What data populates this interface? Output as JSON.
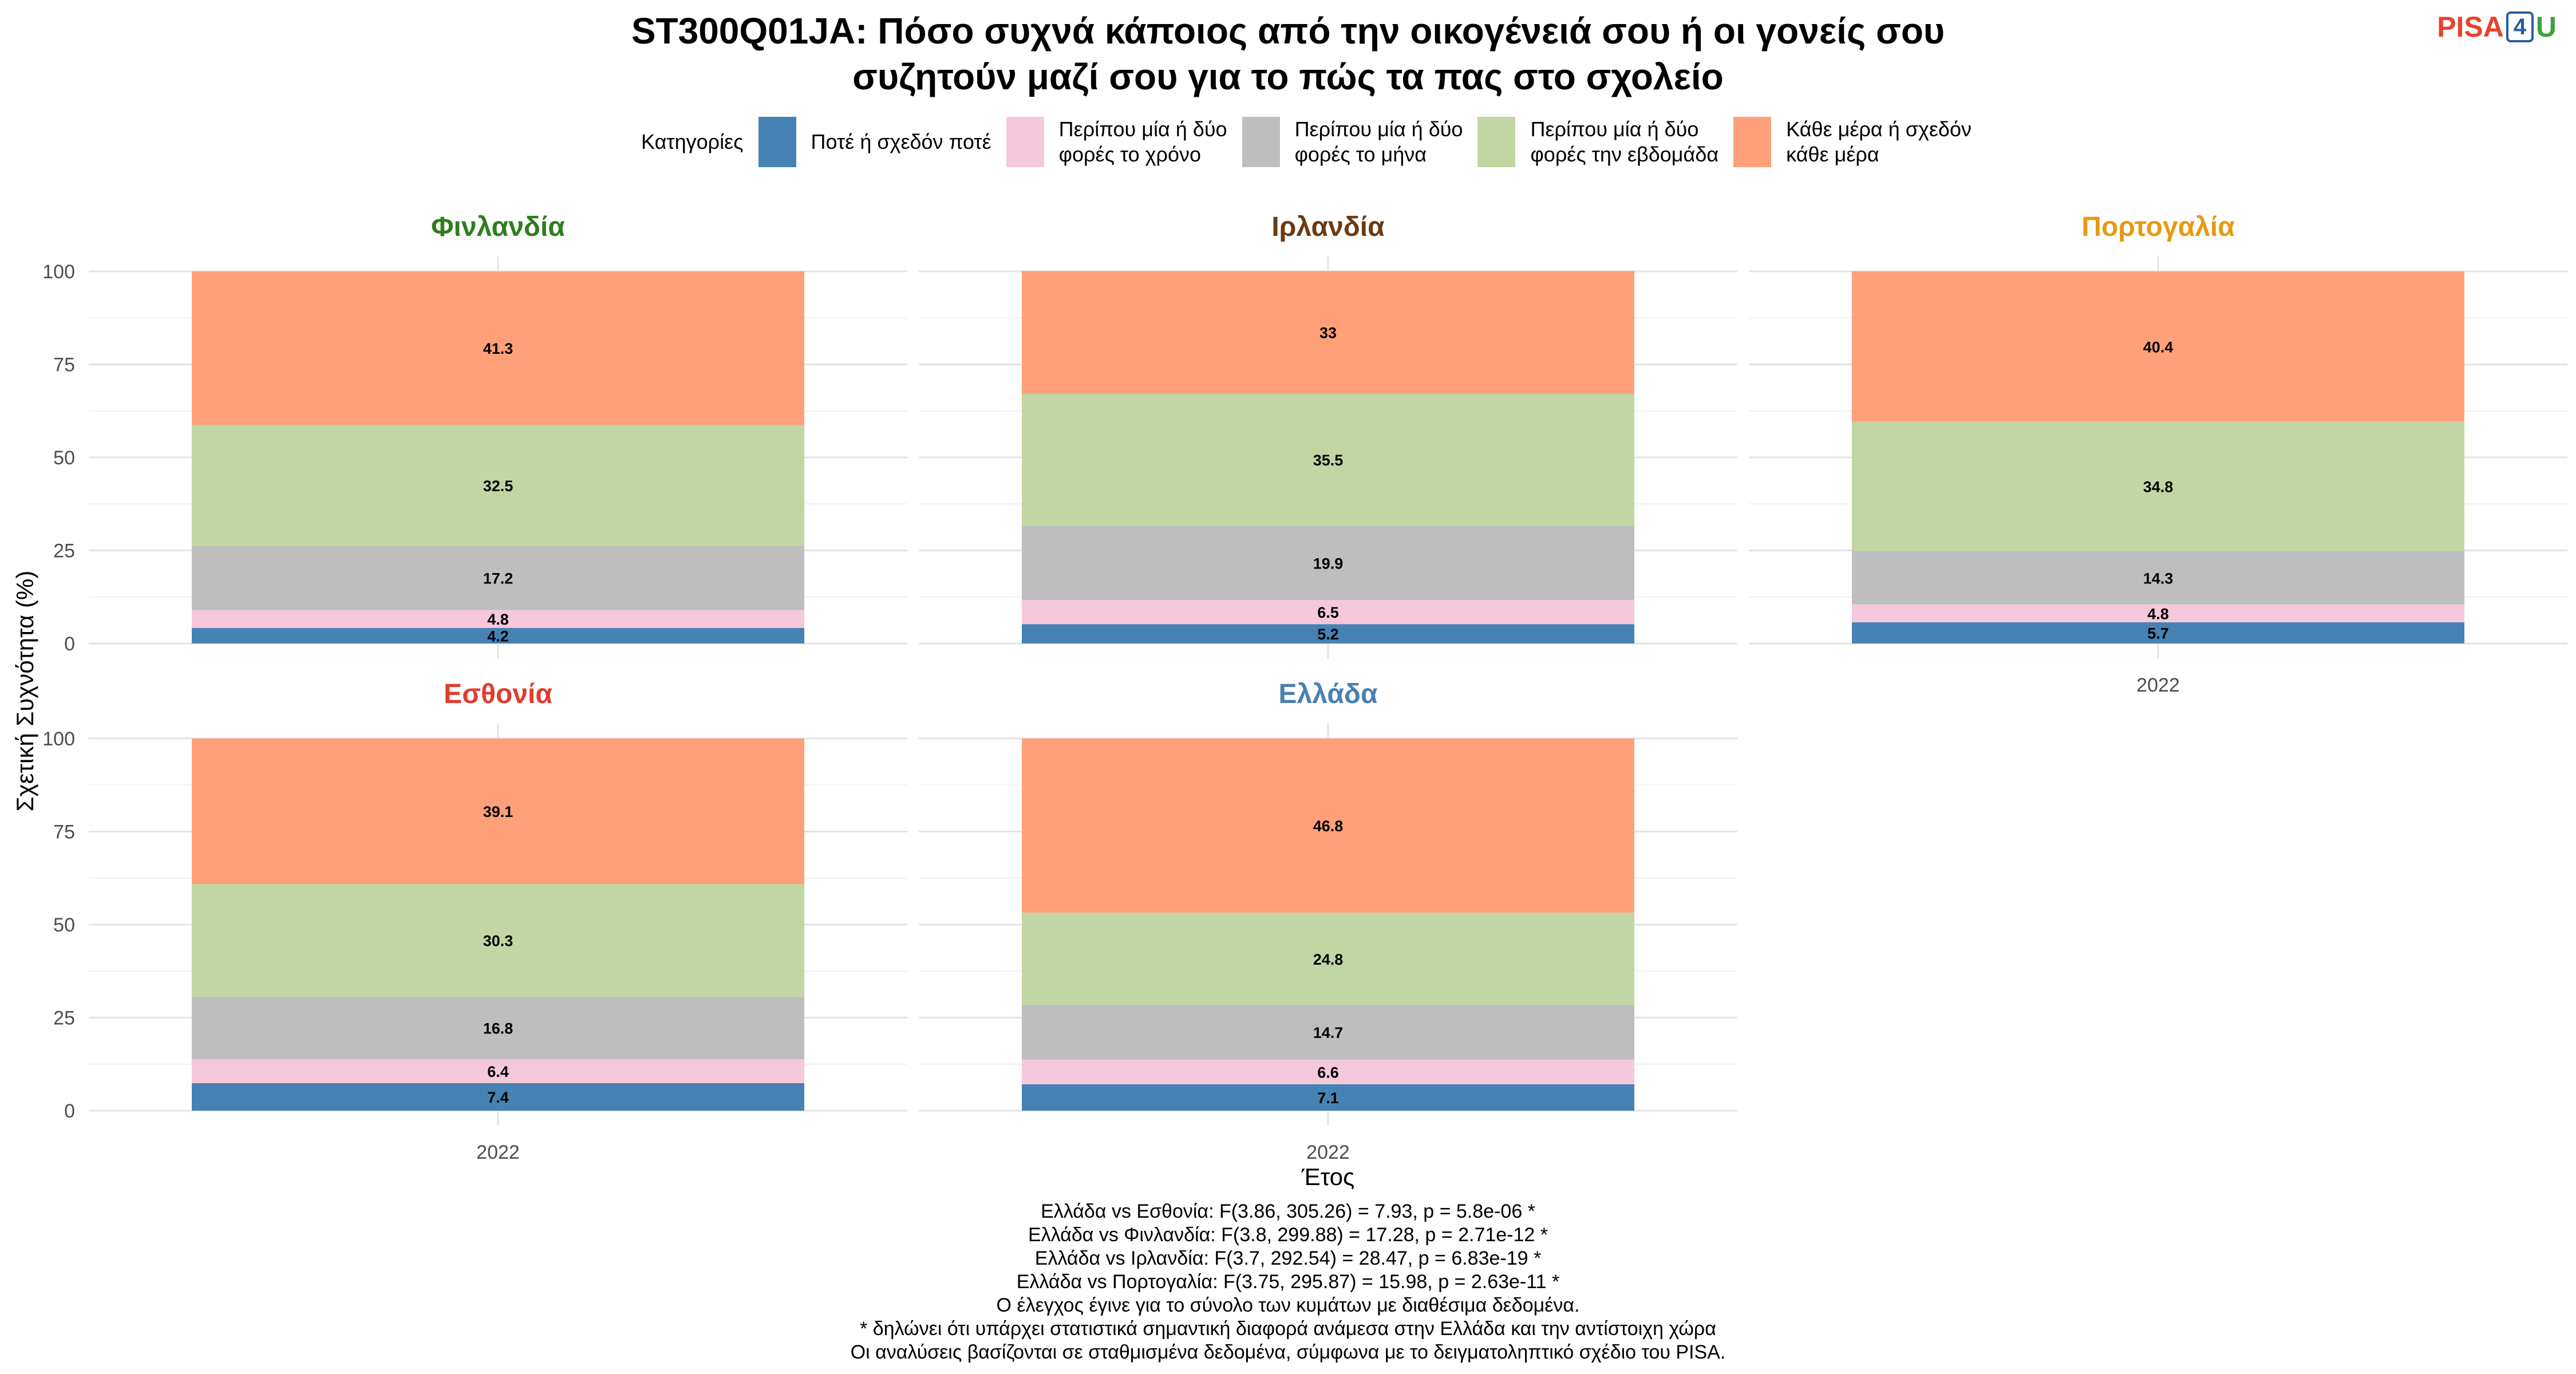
{
  "title": "ST300Q01JA: Πόσο συχνά κάποιος από την οικογένειά σου ή οι γονείς σου\nσυζητούν μαζί σου για το πώς τα πας στο σχολείο",
  "logo": {
    "part1": "PISA",
    "part2": "4",
    "part3": "U"
  },
  "legend": {
    "title": "Κατηγορίες",
    "items": [
      {
        "label": "Ποτέ ή σχεδόν ποτέ",
        "color": "#4682b4"
      },
      {
        "label": "Περίπου μία ή δύο\nφορές το χρόνο",
        "color": "#f6c8dc"
      },
      {
        "label": "Περίπου μία ή δύο\nφορές το μήνα",
        "color": "#bebebe"
      },
      {
        "label": "Περίπου μία ή δύο\nφορές την εβδομάδα",
        "color": "#c2d6a4"
      },
      {
        "label": "Κάθε μέρα ή σχεδόν\nκάθε μέρα",
        "color": "#ffa07a"
      }
    ]
  },
  "chart_data": {
    "type": "bar",
    "stacked": true,
    "xlabel": "Έτος",
    "ylabel": "Σχετική Συχνότητα (%)",
    "ylim": [
      0,
      100
    ],
    "yticks": [
      0,
      25,
      50,
      75,
      100
    ],
    "grid": true,
    "legend_position": "top",
    "categories": [
      "Ποτέ ή σχεδόν ποτέ",
      "Περίπου μία ή δύο φορές το χρόνο",
      "Περίπου μία ή δύο φορές το μήνα",
      "Περίπου μία ή δύο φορές την εβδομάδα",
      "Κάθε μέρα ή σχεδόν κάθε μέρα"
    ],
    "panels": [
      {
        "country": "Φινλανδία",
        "title_color": "#2e7d1e",
        "year": "2022",
        "values": [
          4.2,
          4.8,
          17.2,
          32.5,
          41.3
        ],
        "labels": [
          "4.2",
          "4.8",
          "17.2",
          "32.5",
          "41.3"
        ]
      },
      {
        "country": "Ιρλανδία",
        "title_color": "#6b3a12",
        "year": "2022",
        "values": [
          5.2,
          6.5,
          19.9,
          35.5,
          33.0
        ],
        "labels": [
          "5.2",
          "6.5",
          "19.9",
          "35.5",
          "33"
        ]
      },
      {
        "country": "Πορτογαλία",
        "title_color": "#e69a12",
        "year": "2022",
        "values": [
          5.7,
          4.8,
          14.3,
          34.8,
          40.4
        ],
        "labels": [
          "5.7",
          "4.8",
          "14.3",
          "34.8",
          "40.4"
        ]
      },
      {
        "country": "Εσθονία",
        "title_color": "#e23b2e",
        "year": "2022",
        "values": [
          7.4,
          6.4,
          16.8,
          30.3,
          39.1
        ],
        "labels": [
          "7.4",
          "6.4",
          "16.8",
          "30.3",
          "39.1"
        ]
      },
      {
        "country": "Ελλάδα",
        "title_color": "#4a80b0",
        "year": "2022",
        "values": [
          7.1,
          6.6,
          14.7,
          24.8,
          46.8
        ],
        "labels": [
          "7.1",
          "6.6",
          "14.7",
          "24.8",
          "46.8"
        ]
      }
    ]
  },
  "notes": [
    "Ελλάδα vs Εσθονία: F(3.86, 305.26) = 7.93, p = 5.8e-06 *",
    "Ελλάδα vs Φινλανδία: F(3.8, 299.88) = 17.28, p = 2.71e-12 *",
    "Ελλάδα vs Ιρλανδία: F(3.7, 292.54) = 28.47, p = 6.83e-19 *",
    "Ελλάδα vs Πορτογαλία: F(3.75, 295.87) = 15.98, p = 2.63e-11 *",
    "Ο έλεγχος έγινε για το σύνολο των κυμάτων με διαθέσιμα δεδομένα.",
    "* δηλώνει ότι υπάρχει στατιστικά σημαντική διαφορά ανάμεσα στην Ελλάδα και την αντίστοιχη χώρα",
    "Οι αναλύσεις βασίζονται σε σταθμισμένα δεδομένα, σύμφωνα με το δειγματοληπτικό σχέδιο του PISA."
  ]
}
